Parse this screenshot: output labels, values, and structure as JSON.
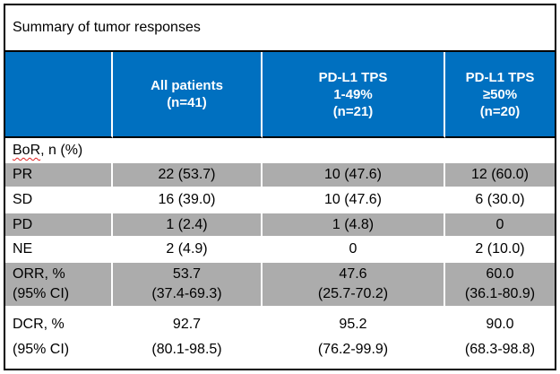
{
  "title": "Summary of tumor responses",
  "colors": {
    "header_bg": "#0070C0",
    "shaded_row_bg": "#ACACAC",
    "header_text": "#FFFFFF",
    "border": "#000000",
    "spellcheck_underline": "#E02020"
  },
  "header": {
    "cols": [
      {
        "lines": [
          "All patients",
          "(n=41)"
        ]
      },
      {
        "lines": [
          "PD-L1 TPS",
          "1-49%",
          "(n=21)"
        ]
      },
      {
        "lines": [
          "PD-L1 TPS",
          "≥50%",
          "(n=20)"
        ]
      }
    ]
  },
  "section": {
    "term": "BoR",
    "suffix": ", n (%)"
  },
  "rows": [
    {
      "label": "PR",
      "values": [
        "22 (53.7)",
        "10 (47.6)",
        "12 (60.0)"
      ]
    },
    {
      "label": "SD",
      "values": [
        "16 (39.0)",
        "10 (47.6)",
        "6 (30.0)"
      ]
    },
    {
      "label": "PD",
      "values": [
        "1 (2.4)",
        "1 (4.8)",
        "0"
      ]
    },
    {
      "label": "NE",
      "values": [
        "2 (4.9)",
        "0",
        "2 (10.0)"
      ]
    }
  ],
  "stat_rows": [
    {
      "label_lines": [
        "ORR, %",
        "(95% CI)"
      ],
      "values": [
        {
          "pct": "53.7",
          "ci": "(37.4-69.3)"
        },
        {
          "pct": "47.6",
          "ci": "(25.7-70.2)"
        },
        {
          "pct": "60.0",
          "ci": "(36.1-80.9)"
        }
      ]
    },
    {
      "label_lines": [
        "DCR, %",
        "(95% CI)"
      ],
      "values": [
        {
          "pct": "92.7",
          "ci": "(80.1-98.5)"
        },
        {
          "pct": "95.2",
          "ci": "(76.2-99.9)"
        },
        {
          "pct": "90.0",
          "ci": "(68.3-98.8)"
        }
      ]
    }
  ]
}
